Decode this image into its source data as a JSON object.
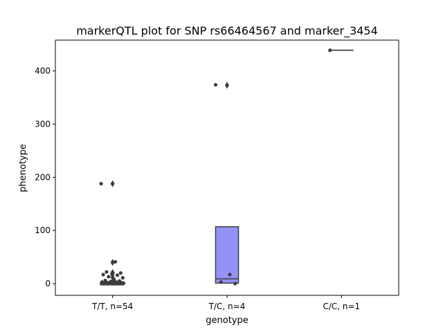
{
  "chart_data": {
    "type": "box",
    "title": "markerQTL plot for SNP rs66464567 and marker_3454",
    "xlabel": "genotype",
    "ylabel": "phenotype",
    "ylim": [
      -22,
      458
    ],
    "yticks": [
      0,
      100,
      200,
      300,
      400
    ],
    "categories": [
      "T/T, n=54",
      "T/C, n=4",
      "C/C, n=1"
    ],
    "box_color": "#9393f7",
    "line_color": "#3d3d3d",
    "point_color": "#3d3d3d",
    "boxes": [
      {
        "category": "T/T, n=54",
        "q1": 0,
        "median": 0,
        "q3": 1,
        "whisker_low": 0,
        "whisker_high": 2,
        "outliers": [
          4,
          12,
          18,
          21,
          40,
          188
        ]
      },
      {
        "category": "T/C, n=4",
        "q1": 1,
        "median": 9,
        "q3": 107,
        "whisker_low": 1,
        "whisker_high": 107,
        "outliers": [
          373
        ]
      },
      {
        "category": "C/C, n=1",
        "q1": 439,
        "median": 439,
        "q3": 439,
        "whisker_low": 439,
        "whisker_high": 439,
        "outliers": []
      }
    ],
    "points": [
      {
        "category": "T/T, n=54",
        "values": [
          188,
          41,
          22,
          20,
          18,
          17,
          16,
          13,
          11,
          8,
          6,
          5,
          4,
          3,
          3,
          2,
          2,
          2,
          2,
          1,
          1,
          1,
          1,
          1,
          1,
          1,
          1,
          1,
          1,
          1,
          1,
          1,
          1,
          1,
          0,
          0,
          0,
          0,
          0,
          0,
          0,
          0,
          0,
          0,
          0,
          0,
          0,
          0,
          0,
          0,
          0,
          0,
          0,
          0
        ]
      },
      {
        "category": "T/C, n=4",
        "values": [
          374,
          17,
          3,
          0
        ]
      },
      {
        "category": "C/C, n=1",
        "values": [
          439
        ]
      }
    ]
  }
}
